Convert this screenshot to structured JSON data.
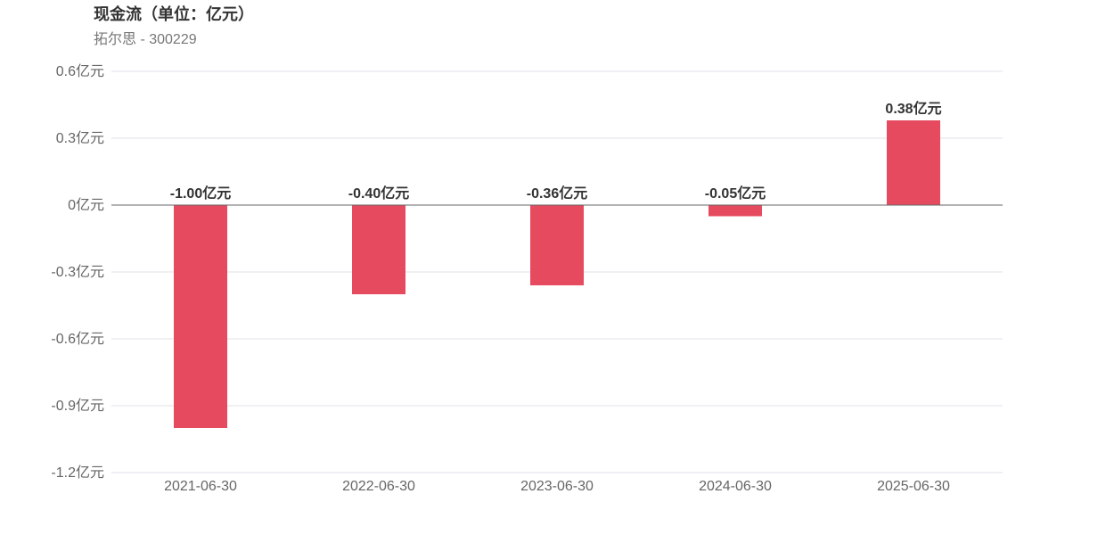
{
  "title": "现金流（单位：亿元）",
  "subtitle": "拓尔思 - 300229",
  "colors": {
    "bar": "#e64a5f",
    "grid": "#e0e0ea",
    "zero_line": "#666666"
  },
  "chart_data": {
    "type": "bar",
    "title": "现金流（单位：亿元）",
    "subtitle": "拓尔思 - 300229",
    "unit": "亿元",
    "categories": [
      "2021-06-30",
      "2022-06-30",
      "2023-06-30",
      "2024-06-30",
      "2025-06-30"
    ],
    "values": [
      -1.0,
      -0.4,
      -0.36,
      -0.05,
      0.38
    ],
    "value_labels": [
      "-1.00亿元",
      "-0.40亿元",
      "-0.36亿元",
      "-0.05亿元",
      "0.38亿元"
    ],
    "yticks": [
      0.6,
      0.3,
      0,
      -0.3,
      -0.6,
      -0.9,
      -1.2
    ],
    "ytick_labels": [
      "0.6亿元",
      "0.3亿元",
      "0亿元",
      "-0.3亿元",
      "-0.6亿元",
      "-0.9亿元",
      "-1.2亿元"
    ],
    "ylim": [
      -1.2,
      0.6
    ],
    "grid": true,
    "legend": "none"
  }
}
